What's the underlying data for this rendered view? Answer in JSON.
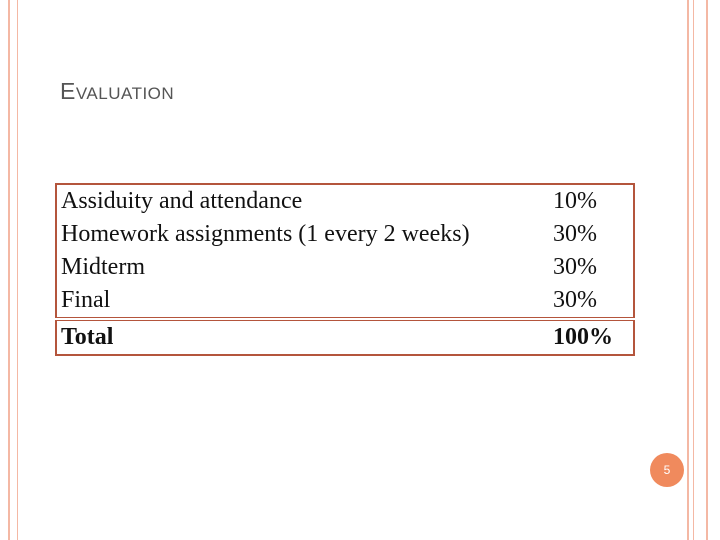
{
  "header": {
    "title": "EVALUATION"
  },
  "table": {
    "rows": [
      [
        "Assiduity and attendance",
        "10%"
      ],
      [
        "Homework assignments (1 every 2 weeks)",
        "30%"
      ],
      [
        "Midterm",
        "30%"
      ],
      [
        "Final",
        "30%"
      ],
      [
        "Total",
        "100%"
      ]
    ]
  },
  "footer": {
    "page_number": "5"
  }
}
